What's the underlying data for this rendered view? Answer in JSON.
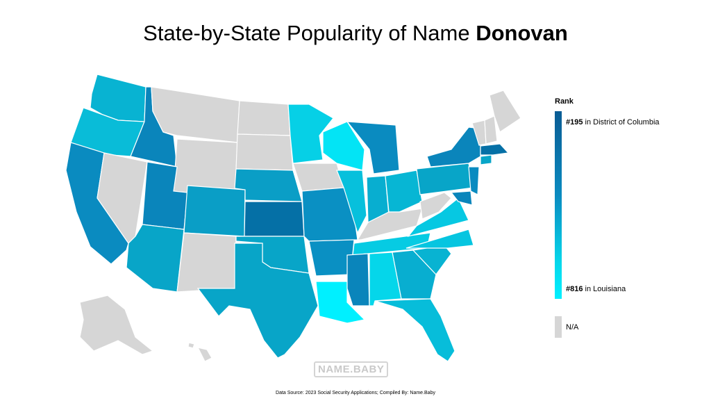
{
  "title": {
    "prefix": "State-by-State Popularity of Name ",
    "name": "Donovan"
  },
  "legend": {
    "title": "Rank",
    "top_rank": "#195",
    "top_text": " in District of Columbia",
    "bottom_rank": "#816",
    "bottom_text": " in Louisiana",
    "na_label": "N/A",
    "colors": {
      "high": "#0a5c94",
      "mid": "#0a8bc0",
      "low": "#00f0ff",
      "na": "#d6d6d6"
    }
  },
  "watermark": {
    "left": "NAME",
    "dot": ".",
    "right": "BABY"
  },
  "source": "Data Source: 2023 Social Security Applications; Compiled By: Name.Baby"
}
